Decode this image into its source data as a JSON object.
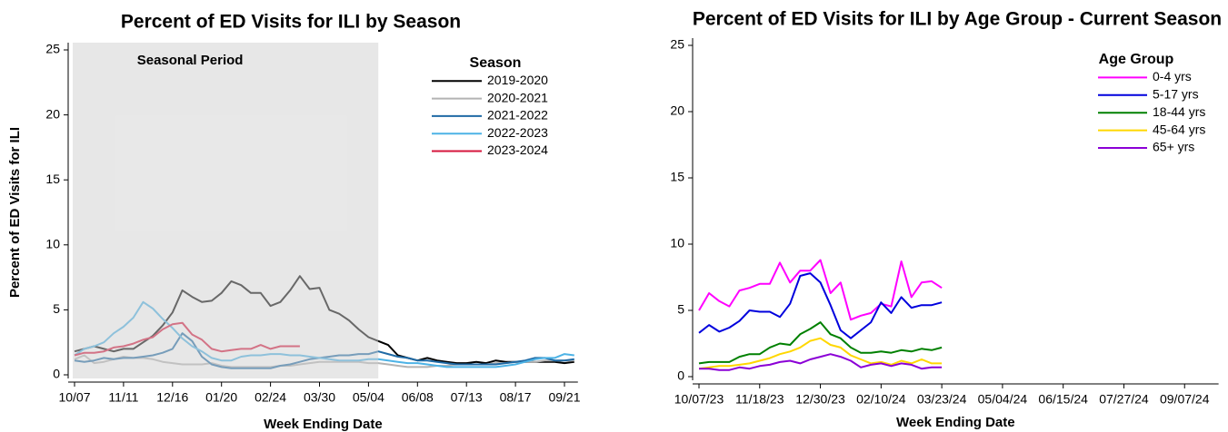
{
  "chart_data": [
    {
      "type": "line",
      "title": "Percent of ED Visits for ILI by Season",
      "x_label": "Week Ending Date",
      "y_label": "Percent of ED Visits for ILI",
      "categories": [
        "10/07",
        null,
        null,
        null,
        null,
        "11/11",
        null,
        null,
        null,
        null,
        "12/16",
        null,
        null,
        null,
        null,
        "01/20",
        null,
        null,
        null,
        null,
        "02/24",
        null,
        null,
        null,
        null,
        "03/30",
        null,
        null,
        null,
        null,
        "05/04",
        null,
        null,
        null,
        null,
        "06/08",
        null,
        null,
        null,
        null,
        "07/13",
        null,
        null,
        null,
        null,
        "08/17",
        null,
        null,
        null,
        null,
        "09/21",
        null
      ],
      "ylim": [
        0,
        25
      ],
      "yticks": [
        0,
        5,
        10,
        15,
        20,
        25
      ],
      "legend": "upper right",
      "legend_title": "Season",
      "shaded_period": {
        "label": "Seasonal Period",
        "start": 0,
        "end": 31
      },
      "series": [
        {
          "name": "2019-2020",
          "color": "#000000",
          "values": [
            1.8,
            2.0,
            2.2,
            2.0,
            1.8,
            2.0,
            2.0,
            2.5,
            3.0,
            3.8,
            4.8,
            6.5,
            6.0,
            5.6,
            5.7,
            6.3,
            7.2,
            6.9,
            6.3,
            6.3,
            5.3,
            5.6,
            6.5,
            7.6,
            6.6,
            6.7,
            5.0,
            4.7,
            4.2,
            3.5,
            2.9,
            2.6,
            2.3,
            1.5,
            1.3,
            1.1,
            1.3,
            1.1,
            1.0,
            0.9,
            0.9,
            1.0,
            0.9,
            1.1,
            1.0,
            1.0,
            1.0,
            1.0,
            1.0,
            1.0,
            0.9,
            1.0
          ]
        },
        {
          "name": "2020-2021",
          "color": "#b3b3b3",
          "values": [
            1.2,
            1.5,
            0.9,
            1.0,
            1.2,
            1.4,
            1.3,
            1.3,
            1.2,
            1.0,
            0.9,
            0.8,
            0.8,
            0.8,
            0.9,
            0.7,
            0.6,
            0.6,
            0.6,
            0.6,
            0.6,
            0.7,
            0.7,
            0.8,
            0.9,
            1.0,
            1.0,
            1.0,
            1.0,
            1.0,
            0.9,
            0.9,
            0.8,
            0.7,
            0.6,
            0.6,
            0.6,
            0.7,
            0.7,
            0.8,
            0.8,
            0.8,
            0.8,
            0.9,
            0.9,
            1.0,
            1.0,
            1.0,
            1.1,
            1.1,
            1.1,
            1.1
          ]
        },
        {
          "name": "2021-2022",
          "color": "#1f6aa5",
          "values": [
            1.1,
            1.0,
            1.1,
            1.3,
            1.2,
            1.3,
            1.3,
            1.4,
            1.5,
            1.7,
            2.0,
            3.2,
            2.6,
            1.4,
            0.8,
            0.6,
            0.5,
            0.5,
            0.5,
            0.5,
            0.5,
            0.7,
            0.8,
            1.0,
            1.2,
            1.3,
            1.4,
            1.5,
            1.5,
            1.6,
            1.6,
            1.8,
            1.6,
            1.4,
            1.3,
            1.1,
            1.1,
            1.0,
            0.9,
            0.8,
            0.8,
            0.8,
            0.8,
            0.8,
            0.9,
            1.0,
            1.1,
            1.3,
            1.3,
            1.1,
            1.1,
            1.2
          ]
        },
        {
          "name": "2022-2023",
          "color": "#4db3e6",
          "values": [
            1.5,
            2.0,
            2.2,
            2.5,
            3.2,
            3.7,
            4.4,
            5.6,
            5.1,
            4.3,
            3.6,
            2.8,
            2.2,
            1.8,
            1.3,
            1.1,
            1.1,
            1.4,
            1.5,
            1.5,
            1.6,
            1.6,
            1.5,
            1.5,
            1.4,
            1.3,
            1.2,
            1.1,
            1.1,
            1.1,
            1.2,
            1.2,
            1.1,
            1.0,
            0.9,
            0.9,
            0.8,
            0.7,
            0.6,
            0.6,
            0.6,
            0.6,
            0.6,
            0.6,
            0.7,
            0.8,
            1.0,
            1.2,
            1.3,
            1.3,
            1.6,
            1.5
          ]
        },
        {
          "name": "2023-2024",
          "color": "#d6163c",
          "values": [
            1.5,
            1.7,
            1.7,
            1.8,
            2.1,
            2.2,
            2.4,
            2.7,
            2.9,
            3.5,
            3.9,
            4.0,
            3.1,
            2.7,
            2.0,
            1.8,
            1.9,
            2.0,
            2.0,
            2.3,
            2.0,
            2.2,
            2.2,
            2.2,
            null,
            null,
            null,
            null,
            null,
            null,
            null,
            null,
            null,
            null,
            null,
            null,
            null,
            null,
            null,
            null,
            null,
            null,
            null,
            null,
            null,
            null,
            null,
            null,
            null,
            null,
            null,
            null
          ]
        }
      ]
    },
    {
      "type": "line",
      "title": "Percent of ED Visits for ILI by Age Group - Current Season",
      "x_label": "Week Ending Date",
      "categories": [
        "10/07/23",
        null,
        null,
        null,
        null,
        null,
        "11/18/23",
        null,
        null,
        null,
        null,
        null,
        "12/30/23",
        null,
        null,
        null,
        null,
        null,
        "02/10/24",
        null,
        null,
        null,
        null,
        null,
        "03/23/24",
        null,
        null,
        null,
        null,
        null,
        "05/04/24",
        null,
        null,
        null,
        null,
        null,
        "06/15/24",
        null,
        null,
        null,
        null,
        null,
        "07/27/24",
        null,
        null,
        null,
        null,
        null,
        "09/07/24",
        null,
        null,
        null
      ],
      "ylim": [
        0,
        25
      ],
      "yticks": [
        0,
        5,
        10,
        15,
        20,
        25
      ],
      "legend": "upper right",
      "legend_title": "Age Group",
      "series": [
        {
          "name": "0-4 yrs",
          "color": "#ff00ff",
          "values": [
            5.0,
            6.3,
            5.7,
            5.3,
            6.5,
            6.7,
            7.0,
            7.0,
            8.6,
            7.1,
            8.0,
            8.0,
            8.8,
            6.3,
            7.1,
            4.3,
            4.6,
            4.8,
            5.5,
            5.3,
            8.7,
            6.0,
            7.1,
            7.2,
            6.7,
            null,
            null,
            null,
            null,
            null,
            null,
            null,
            null,
            null,
            null,
            null,
            null,
            null,
            null,
            null,
            null,
            null,
            null,
            null,
            null,
            null,
            null,
            null,
            null,
            null,
            null,
            null
          ]
        },
        {
          "name": "5-17 yrs",
          "color": "#0000dd",
          "values": [
            3.3,
            3.9,
            3.4,
            3.7,
            4.2,
            5.0,
            4.9,
            4.9,
            4.5,
            5.5,
            7.6,
            7.8,
            7.1,
            5.4,
            3.5,
            2.9,
            3.5,
            4.1,
            5.6,
            4.8,
            6.0,
            5.2,
            5.4,
            5.4,
            5.6,
            null,
            null,
            null,
            null,
            null,
            null,
            null,
            null,
            null,
            null,
            null,
            null,
            null,
            null,
            null,
            null,
            null,
            null,
            null,
            null,
            null,
            null,
            null,
            null,
            null,
            null,
            null
          ]
        },
        {
          "name": "18-44 yrs",
          "color": "#008000",
          "values": [
            1.0,
            1.1,
            1.1,
            1.1,
            1.5,
            1.7,
            1.7,
            2.2,
            2.5,
            2.4,
            3.2,
            3.6,
            4.1,
            3.2,
            2.9,
            2.2,
            1.8,
            1.8,
            1.9,
            1.8,
            2.0,
            1.9,
            2.1,
            2.0,
            2.2,
            null,
            null,
            null,
            null,
            null,
            null,
            null,
            null,
            null,
            null,
            null,
            null,
            null,
            null,
            null,
            null,
            null,
            null,
            null,
            null,
            null,
            null,
            null,
            null,
            null,
            null,
            null
          ]
        },
        {
          "name": "45-64 yrs",
          "color": "#ffd700",
          "values": [
            0.6,
            0.7,
            0.8,
            0.8,
            0.9,
            1.0,
            1.2,
            1.4,
            1.7,
            1.9,
            2.2,
            2.7,
            2.9,
            2.4,
            2.2,
            1.6,
            1.3,
            1.0,
            1.1,
            0.9,
            1.2,
            1.0,
            1.3,
            1.0,
            1.0,
            null,
            null,
            null,
            null,
            null,
            null,
            null,
            null,
            null,
            null,
            null,
            null,
            null,
            null,
            null,
            null,
            null,
            null,
            null,
            null,
            null,
            null,
            null,
            null,
            null,
            null,
            null
          ]
        },
        {
          "name": "65+ yrs",
          "color": "#8b00d6",
          "values": [
            0.6,
            0.6,
            0.5,
            0.5,
            0.7,
            0.6,
            0.8,
            0.9,
            1.1,
            1.2,
            1.0,
            1.3,
            1.5,
            1.7,
            1.5,
            1.2,
            0.7,
            0.9,
            1.0,
            0.8,
            1.0,
            0.9,
            0.6,
            0.7,
            0.7,
            null,
            null,
            null,
            null,
            null,
            null,
            null,
            null,
            null,
            null,
            null,
            null,
            null,
            null,
            null,
            null,
            null,
            null,
            null,
            null,
            null,
            null,
            null,
            null,
            null,
            null,
            null
          ]
        }
      ]
    }
  ]
}
